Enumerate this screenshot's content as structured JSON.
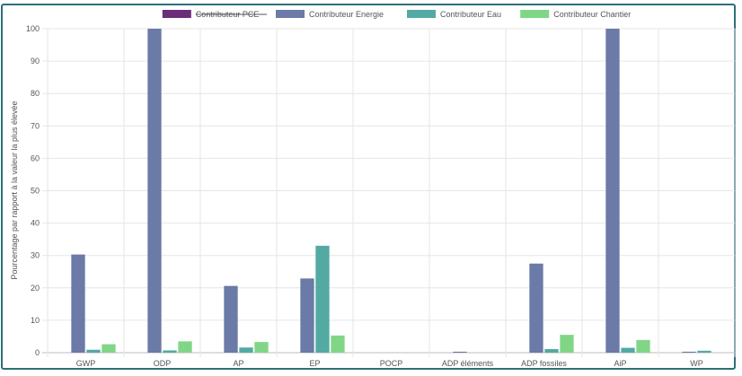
{
  "chart_data": {
    "type": "bar",
    "title": "",
    "xlabel": "",
    "ylabel": "Pourcentage par rapport à la valeur la plus élevée",
    "ylim": [
      0,
      100
    ],
    "yticks": [
      0,
      10,
      20,
      30,
      40,
      50,
      60,
      70,
      80,
      90,
      100
    ],
    "grid": true,
    "legend_position": "top-center",
    "categories": [
      "GWP",
      "ODP",
      "AP",
      "EP",
      "POCP",
      "ADP éléments",
      "ADP fossiles",
      "AiP",
      "WP"
    ],
    "series": [
      {
        "name": "Contributeur PCE",
        "color": "#6b2d77",
        "hidden": true,
        "values": [
          0,
          0,
          0,
          0,
          0,
          0,
          0,
          0,
          0
        ]
      },
      {
        "name": "Contributeur Energie",
        "color": "#6b7aa6",
        "values": [
          30.3,
          100,
          20.6,
          22.9,
          0,
          0.3,
          27.5,
          100,
          0.3
        ]
      },
      {
        "name": "Contributeur Eau",
        "color": "#52aaa3",
        "values": [
          0.9,
          0.7,
          1.6,
          33.0,
          0,
          0,
          1.1,
          1.5,
          0.6
        ]
      },
      {
        "name": "Contributeur Chantier",
        "color": "#80d686",
        "values": [
          2.6,
          3.5,
          3.3,
          5.3,
          0,
          0,
          5.5,
          3.9,
          0
        ]
      }
    ]
  }
}
